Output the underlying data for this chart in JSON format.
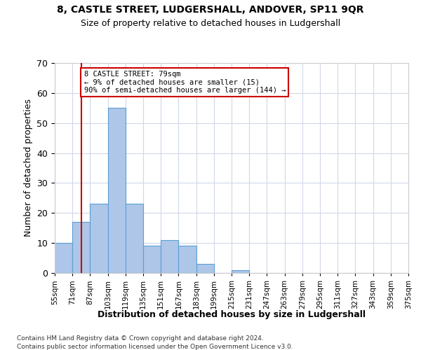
{
  "title1": "8, CASTLE STREET, LUDGERSHALL, ANDOVER, SP11 9QR",
  "title2": "Size of property relative to detached houses in Ludgershall",
  "xlabel": "Distribution of detached houses by size in Ludgershall",
  "ylabel": "Number of detached properties",
  "footnote1": "Contains HM Land Registry data © Crown copyright and database right 2024.",
  "footnote2": "Contains public sector information licensed under the Open Government Licence v3.0.",
  "bin_labels": [
    "55sqm",
    "71sqm",
    "87sqm",
    "103sqm",
    "119sqm",
    "135sqm",
    "151sqm",
    "167sqm",
    "183sqm",
    "199sqm",
    "215sqm",
    "231sqm",
    "247sqm",
    "263sqm",
    "279sqm",
    "295sqm",
    "311sqm",
    "327sqm",
    "343sqm",
    "359sqm",
    "375sqm"
  ],
  "bar_values": [
    10,
    17,
    23,
    55,
    23,
    9,
    11,
    9,
    3,
    0,
    1,
    0,
    0,
    0,
    0,
    0,
    0,
    0,
    0,
    0
  ],
  "bar_color": "#aec6e8",
  "bar_edge_color": "#5a9fd4",
  "ylim": [
    0,
    70
  ],
  "yticks": [
    0,
    10,
    20,
    30,
    40,
    50,
    60,
    70
  ],
  "annotation_text1": "8 CASTLE STREET: 79sqm",
  "annotation_text2": "← 9% of detached houses are smaller (15)",
  "annotation_text3": "90% of semi-detached houses are larger (144) →",
  "annotation_box_color": "#ffffff",
  "annotation_box_edge": "#cc0000",
  "vline_color": "#cc0000",
  "background_color": "#ffffff",
  "grid_color": "#d0d8e8"
}
